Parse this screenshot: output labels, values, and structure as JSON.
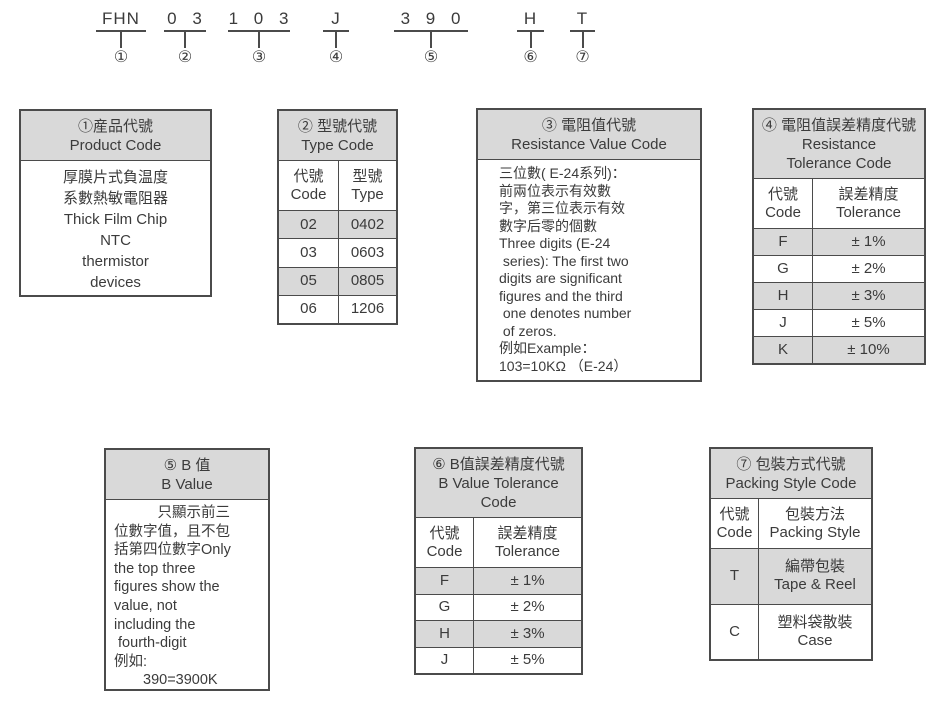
{
  "colors": {
    "header_fill": "#d9d9d9",
    "ink": "#3b3b3b",
    "line": "#4b4b4b"
  },
  "part_number": {
    "segments": [
      {
        "code": "FHN",
        "marker": "①"
      },
      {
        "code": "0 3",
        "marker": "②"
      },
      {
        "code": "1 0 3",
        "marker": "③"
      },
      {
        "code": "J",
        "marker": "④"
      },
      {
        "code": "3 9 0",
        "marker": "⑤"
      },
      {
        "code": "H",
        "marker": "⑥"
      },
      {
        "code": "T",
        "marker": "⑦"
      }
    ]
  },
  "product_code_box": {
    "title_zh": "①産品代號",
    "title_en": "Product Code",
    "body_lines": [
      "厚膜片式負温度",
      "系數熱敏電阻器",
      "Thick Film Chip",
      "NTC",
      "thermistor",
      "devices"
    ]
  },
  "type_code_box": {
    "title_zh": "② 型號代號",
    "title_en": "Type Code",
    "col_code_zh": "代號",
    "col_code_en": "Code",
    "col_type_zh": "型號",
    "col_type_en": "Type",
    "rows": [
      {
        "code": "02",
        "type": "0402"
      },
      {
        "code": "03",
        "type": "0603"
      },
      {
        "code": "05",
        "type": "0805"
      },
      {
        "code": "06",
        "type": "1206"
      }
    ]
  },
  "resistance_value_box": {
    "title_zh": "③ 電阻值代號",
    "title_en": "Resistance Value Code",
    "body": "三位數( E-24系列)：\n前兩位表示有效數\n字，第三位表示有效\n數字后零的個數\nThree digits (E-24\n series): The first two\ndigits are significant\nfigures and the third\n one denotes number\n of zeros.\n例如Example：\n103=10KΩ （E-24）"
  },
  "resistance_tolerance_box": {
    "title_zh": "④ 電阻值誤差精度代號",
    "title_en_line1": "Resistance",
    "title_en_line2": "Tolerance Code",
    "col_code_zh": "代號",
    "col_code_en": "Code",
    "col_tol_zh": "誤差精度",
    "col_tol_en": "Tolerance",
    "rows": [
      {
        "code": "F",
        "tolerance": "± 1%"
      },
      {
        "code": "G",
        "tolerance": "± 2%"
      },
      {
        "code": "H",
        "tolerance": "± 3%"
      },
      {
        "code": "J",
        "tolerance": "± 5%"
      },
      {
        "code": "K",
        "tolerance": "± 10%"
      }
    ]
  },
  "b_value_box": {
    "title_zh": "⑤ B 值",
    "title_en": "B Value",
    "body": "　　　只顯示前三\n位數字值，且不包\n括第四位數字Only\nthe top three\nfigures show the\nvalue, not\nincluding the\n fourth-digit\n例如:\n　　390=3900K"
  },
  "b_tolerance_box": {
    "title_zh": "⑥ B值誤差精度代號",
    "title_en_line1": "B Value Tolerance",
    "title_en_line2": "Code",
    "col_code_zh": "代號",
    "col_code_en": "Code",
    "col_tol_zh": "誤差精度",
    "col_tol_en": "Tolerance",
    "rows": [
      {
        "code": "F",
        "tolerance": "± 1%"
      },
      {
        "code": "G",
        "tolerance": "± 2%"
      },
      {
        "code": "H",
        "tolerance": "± 3%"
      },
      {
        "code": "J",
        "tolerance": "± 5%"
      }
    ]
  },
  "packing_box": {
    "title_zh": "⑦ 包裝方式代號",
    "title_en": "Packing Style Code",
    "col_code_zh": "代號",
    "col_code_en": "Code",
    "col_style_zh": "包裝方法",
    "col_style_en": "Packing Style",
    "rows": [
      {
        "code": "T",
        "style_zh": "編帶包裝",
        "style_en": "Tape  & Reel"
      },
      {
        "code": "C",
        "style_zh": "塑料袋散裝",
        "style_en": "Case"
      }
    ]
  }
}
